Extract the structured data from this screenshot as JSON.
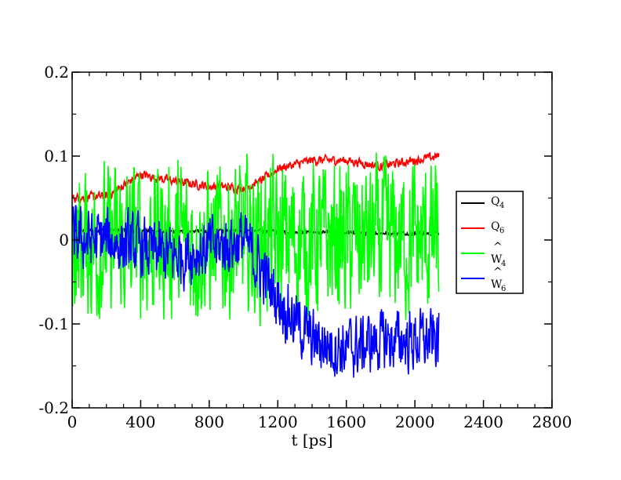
{
  "chart_data": {
    "type": "line",
    "xlabel": "t [ps]",
    "ylabel": "",
    "title": "",
    "xlim": [
      0,
      2800
    ],
    "ylim": [
      -0.2,
      0.2
    ],
    "x_ticks": [
      0,
      400,
      800,
      1200,
      1600,
      2000,
      2400,
      2800
    ],
    "x_tick_labels": [
      "0",
      "400",
      "800",
      "1200",
      "1600",
      "2000",
      "2400",
      "2800"
    ],
    "y_ticks": [
      -0.2,
      -0.1,
      0,
      0.1,
      0.2
    ],
    "y_tick_labels": [
      "-0.2",
      "-0.1",
      "0",
      "0.1",
      "0.2"
    ],
    "grid": false,
    "legend_position": "right",
    "series": [
      {
        "name": "Q4",
        "legend": {
          "main": "Q",
          "sub": "4",
          "hat": ""
        },
        "color": "#000000",
        "x": [
          0,
          200,
          400,
          600,
          800,
          1000,
          1200,
          1400,
          1600,
          1800,
          2000,
          2140
        ],
        "y": [
          0.01,
          0.012,
          0.011,
          0.01,
          0.011,
          0.012,
          0.01,
          0.009,
          0.009,
          0.008,
          0.008,
          0.008
        ],
        "noise": 0.003
      },
      {
        "name": "Q6",
        "legend": {
          "main": "Q",
          "sub": "6",
          "hat": ""
        },
        "color": "#ff0000",
        "x": [
          0,
          200,
          400,
          600,
          800,
          1000,
          1100,
          1200,
          1400,
          1600,
          1800,
          2000,
          2140
        ],
        "y": [
          0.05,
          0.052,
          0.078,
          0.07,
          0.064,
          0.062,
          0.07,
          0.085,
          0.095,
          0.095,
          0.088,
          0.095,
          0.1
        ],
        "noise": 0.008
      },
      {
        "name": "W4",
        "legend": {
          "main": "W",
          "sub": "4",
          "hat": "^"
        },
        "color": "#00ff00",
        "x": [
          0,
          200,
          400,
          600,
          800,
          1000,
          1200,
          1400,
          1600,
          1800,
          2000,
          2140
        ],
        "y": [
          0.0,
          -0.005,
          0.0,
          0.0,
          -0.005,
          0.0,
          0.0,
          0.0,
          0.0,
          0.0,
          0.0,
          0.0
        ],
        "noise": 0.135
      },
      {
        "name": "W6",
        "legend": {
          "main": "W",
          "sub": "6",
          "hat": "^"
        },
        "color": "#0000ff",
        "x": [
          0,
          200,
          400,
          600,
          800,
          1000,
          1200,
          1400,
          1600,
          1800,
          2000,
          2140
        ],
        "y": [
          0.0,
          0.0,
          -0.01,
          -0.02,
          -0.01,
          0.0,
          -0.07,
          -0.12,
          -0.13,
          -0.12,
          -0.12,
          -0.12
        ],
        "noise": 0.055
      }
    ]
  }
}
